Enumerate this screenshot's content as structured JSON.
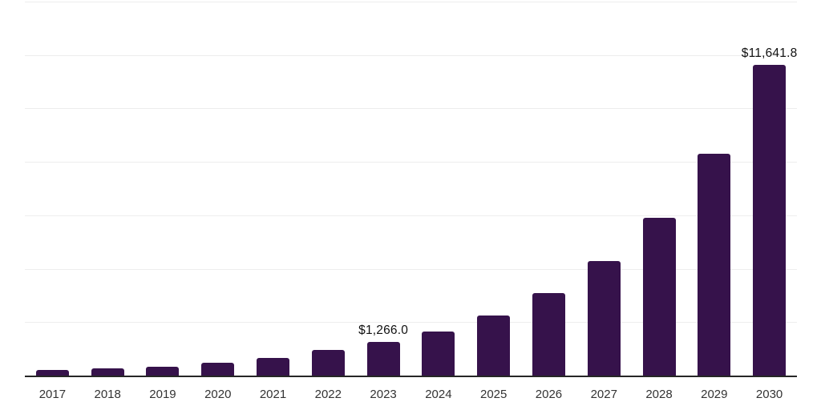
{
  "chart_data": {
    "type": "bar",
    "title": "",
    "xlabel": "",
    "ylabel": "",
    "categories": [
      "2017",
      "2018",
      "2019",
      "2020",
      "2021",
      "2022",
      "2023",
      "2024",
      "2025",
      "2026",
      "2027",
      "2028",
      "2029",
      "2030"
    ],
    "values": [
      220,
      270,
      330,
      470,
      650,
      950,
      1266.0,
      1660,
      2250,
      3080,
      4280,
      5900,
      8290,
      11641.8
    ],
    "labeled_points": [
      {
        "index": 6,
        "label": "$1,266.0"
      },
      {
        "index": 13,
        "label": "$11,641.8"
      }
    ],
    "ylim": [
      0,
      14000
    ],
    "grid_step": 2000,
    "grid": "horizontal-only",
    "legend": "none",
    "y_axis_tick_labels": "none",
    "colors": {
      "bar_fill": "#36124b",
      "gridline": "#ededed",
      "axis_line": "#262626",
      "x_tick_label": "#333333",
      "value_label": "#111111",
      "background": "#ffffff"
    }
  }
}
